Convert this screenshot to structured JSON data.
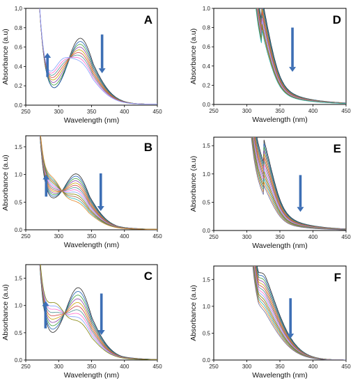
{
  "figure": {
    "xlabel": "Wavelength (nm)",
    "ylabel": "Absorbance (a.u)",
    "arrow_color": "#3d6fb5",
    "series_colors": [
      "#2a2a2a",
      "#1a5fb4",
      "#3c9f3c",
      "#8a3ea8",
      "#c8a000",
      "#d04040",
      "#4a8f8f",
      "#ff66cc",
      "#7fa0ff",
      "#808000",
      "#a05a2c",
      "#20b2aa",
      "#e08020",
      "#6b6b9a",
      "#2e8b57",
      "#cc3366",
      "#88aa44",
      "#9a7bd0"
    ]
  },
  "chart_data": [
    {
      "panel": "A",
      "type": "line",
      "xlim": [
        250,
        450
      ],
      "ylim": [
        0.0,
        1.0
      ],
      "xticks": [
        "250",
        "300",
        "350",
        "400",
        "450"
      ],
      "yticks": [
        "0.0",
        "0.2",
        "0.4",
        "0.6",
        "0.8",
        "1,0"
      ],
      "curves": 9,
      "peak_x": 333,
      "peak_max": 0.69,
      "peak_min": 0.42,
      "valley_x": 309,
      "valley_max": 0.5,
      "valley_min": 0.3,
      "arrows": [
        {
          "dir": "up",
          "x": 283,
          "y0": 0.29,
          "y1": 0.54
        },
        {
          "dir": "down",
          "x": 366,
          "y0": 0.73,
          "y1": 0.33
        }
      ]
    },
    {
      "panel": "B",
      "type": "line",
      "xlim": [
        250,
        450
      ],
      "ylim": [
        0.0,
        1.7
      ],
      "xticks": [
        "250",
        "300",
        "350",
        "400",
        "450"
      ],
      "yticks": [
        "0.0",
        "0.5",
        "1.0",
        "1.5"
      ],
      "curves": 13,
      "peak_x": 327,
      "peak_max": 1.0,
      "peak_min": 0.48,
      "valley_x": 297,
      "valley_max": 0.82,
      "valley_min": 0.52,
      "arrows": [
        {
          "dir": "up",
          "x": 281,
          "y0": 0.6,
          "y1": 1.0
        },
        {
          "dir": "down",
          "x": 364,
          "y0": 1.02,
          "y1": 0.34
        }
      ]
    },
    {
      "panel": "C",
      "type": "line",
      "xlim": [
        250,
        450
      ],
      "ylim": [
        0.0,
        1.75
      ],
      "xticks": [
        "250",
        "300",
        "350",
        "400",
        "450"
      ],
      "yticks": [
        "0.0",
        "0.5",
        "1.0",
        "1.5"
      ],
      "curves": 10,
      "peak_x": 330,
      "peak_max": 1.32,
      "peak_min": 0.68,
      "valley_x": 300,
      "valley_max": 1.0,
      "valley_min": 0.55,
      "arrows": [
        {
          "dir": "up",
          "x": 280,
          "y0": 0.58,
          "y1": 1.08
        },
        {
          "dir": "down",
          "x": 365,
          "y0": 1.22,
          "y1": 0.46
        }
      ]
    },
    {
      "panel": "D",
      "type": "line",
      "xlim": [
        250,
        450
      ],
      "ylim": [
        0.0,
        1.0
      ],
      "xticks": [
        "250",
        "300",
        "350",
        "400",
        "450"
      ],
      "yticks": [
        "0.0",
        "0.2",
        "0.4",
        "0.6",
        "0.8",
        "1.0"
      ],
      "curves": 12,
      "shoulder_x": 322,
      "shoulder_max": 0.78,
      "shoulder_min": 0.48,
      "arrows": [
        {
          "dir": "down",
          "x": 369,
          "y0": 0.8,
          "y1": 0.34
        }
      ]
    },
    {
      "panel": "E",
      "type": "line",
      "xlim": [
        250,
        450
      ],
      "ylim": [
        0.0,
        1.65
      ],
      "xticks": [
        "250",
        "300",
        "350",
        "400",
        "450"
      ],
      "yticks": [
        "0.0",
        "0.5",
        "1.0",
        "1.5"
      ],
      "curves": 14,
      "shoulder_x": 325,
      "shoulder_max": 1.25,
      "shoulder_min": 0.55,
      "arrows": [
        {
          "dir": "down",
          "x": 381,
          "y0": 0.98,
          "y1": 0.33
        }
      ]
    },
    {
      "panel": "F",
      "type": "line",
      "xlim": [
        250,
        450
      ],
      "ylim": [
        0.0,
        1.75
      ],
      "xticks": [
        "250",
        "300",
        "350",
        "400",
        "450"
      ],
      "yticks": [
        "0.0",
        "0.5",
        "1.0",
        "1.5"
      ],
      "curves": 14,
      "peak_x": 327,
      "peak_max": 1.43,
      "peak_min": 0.75,
      "arrows": [
        {
          "dir": "down",
          "x": 366,
          "y0": 1.15,
          "y1": 0.4
        }
      ]
    }
  ]
}
